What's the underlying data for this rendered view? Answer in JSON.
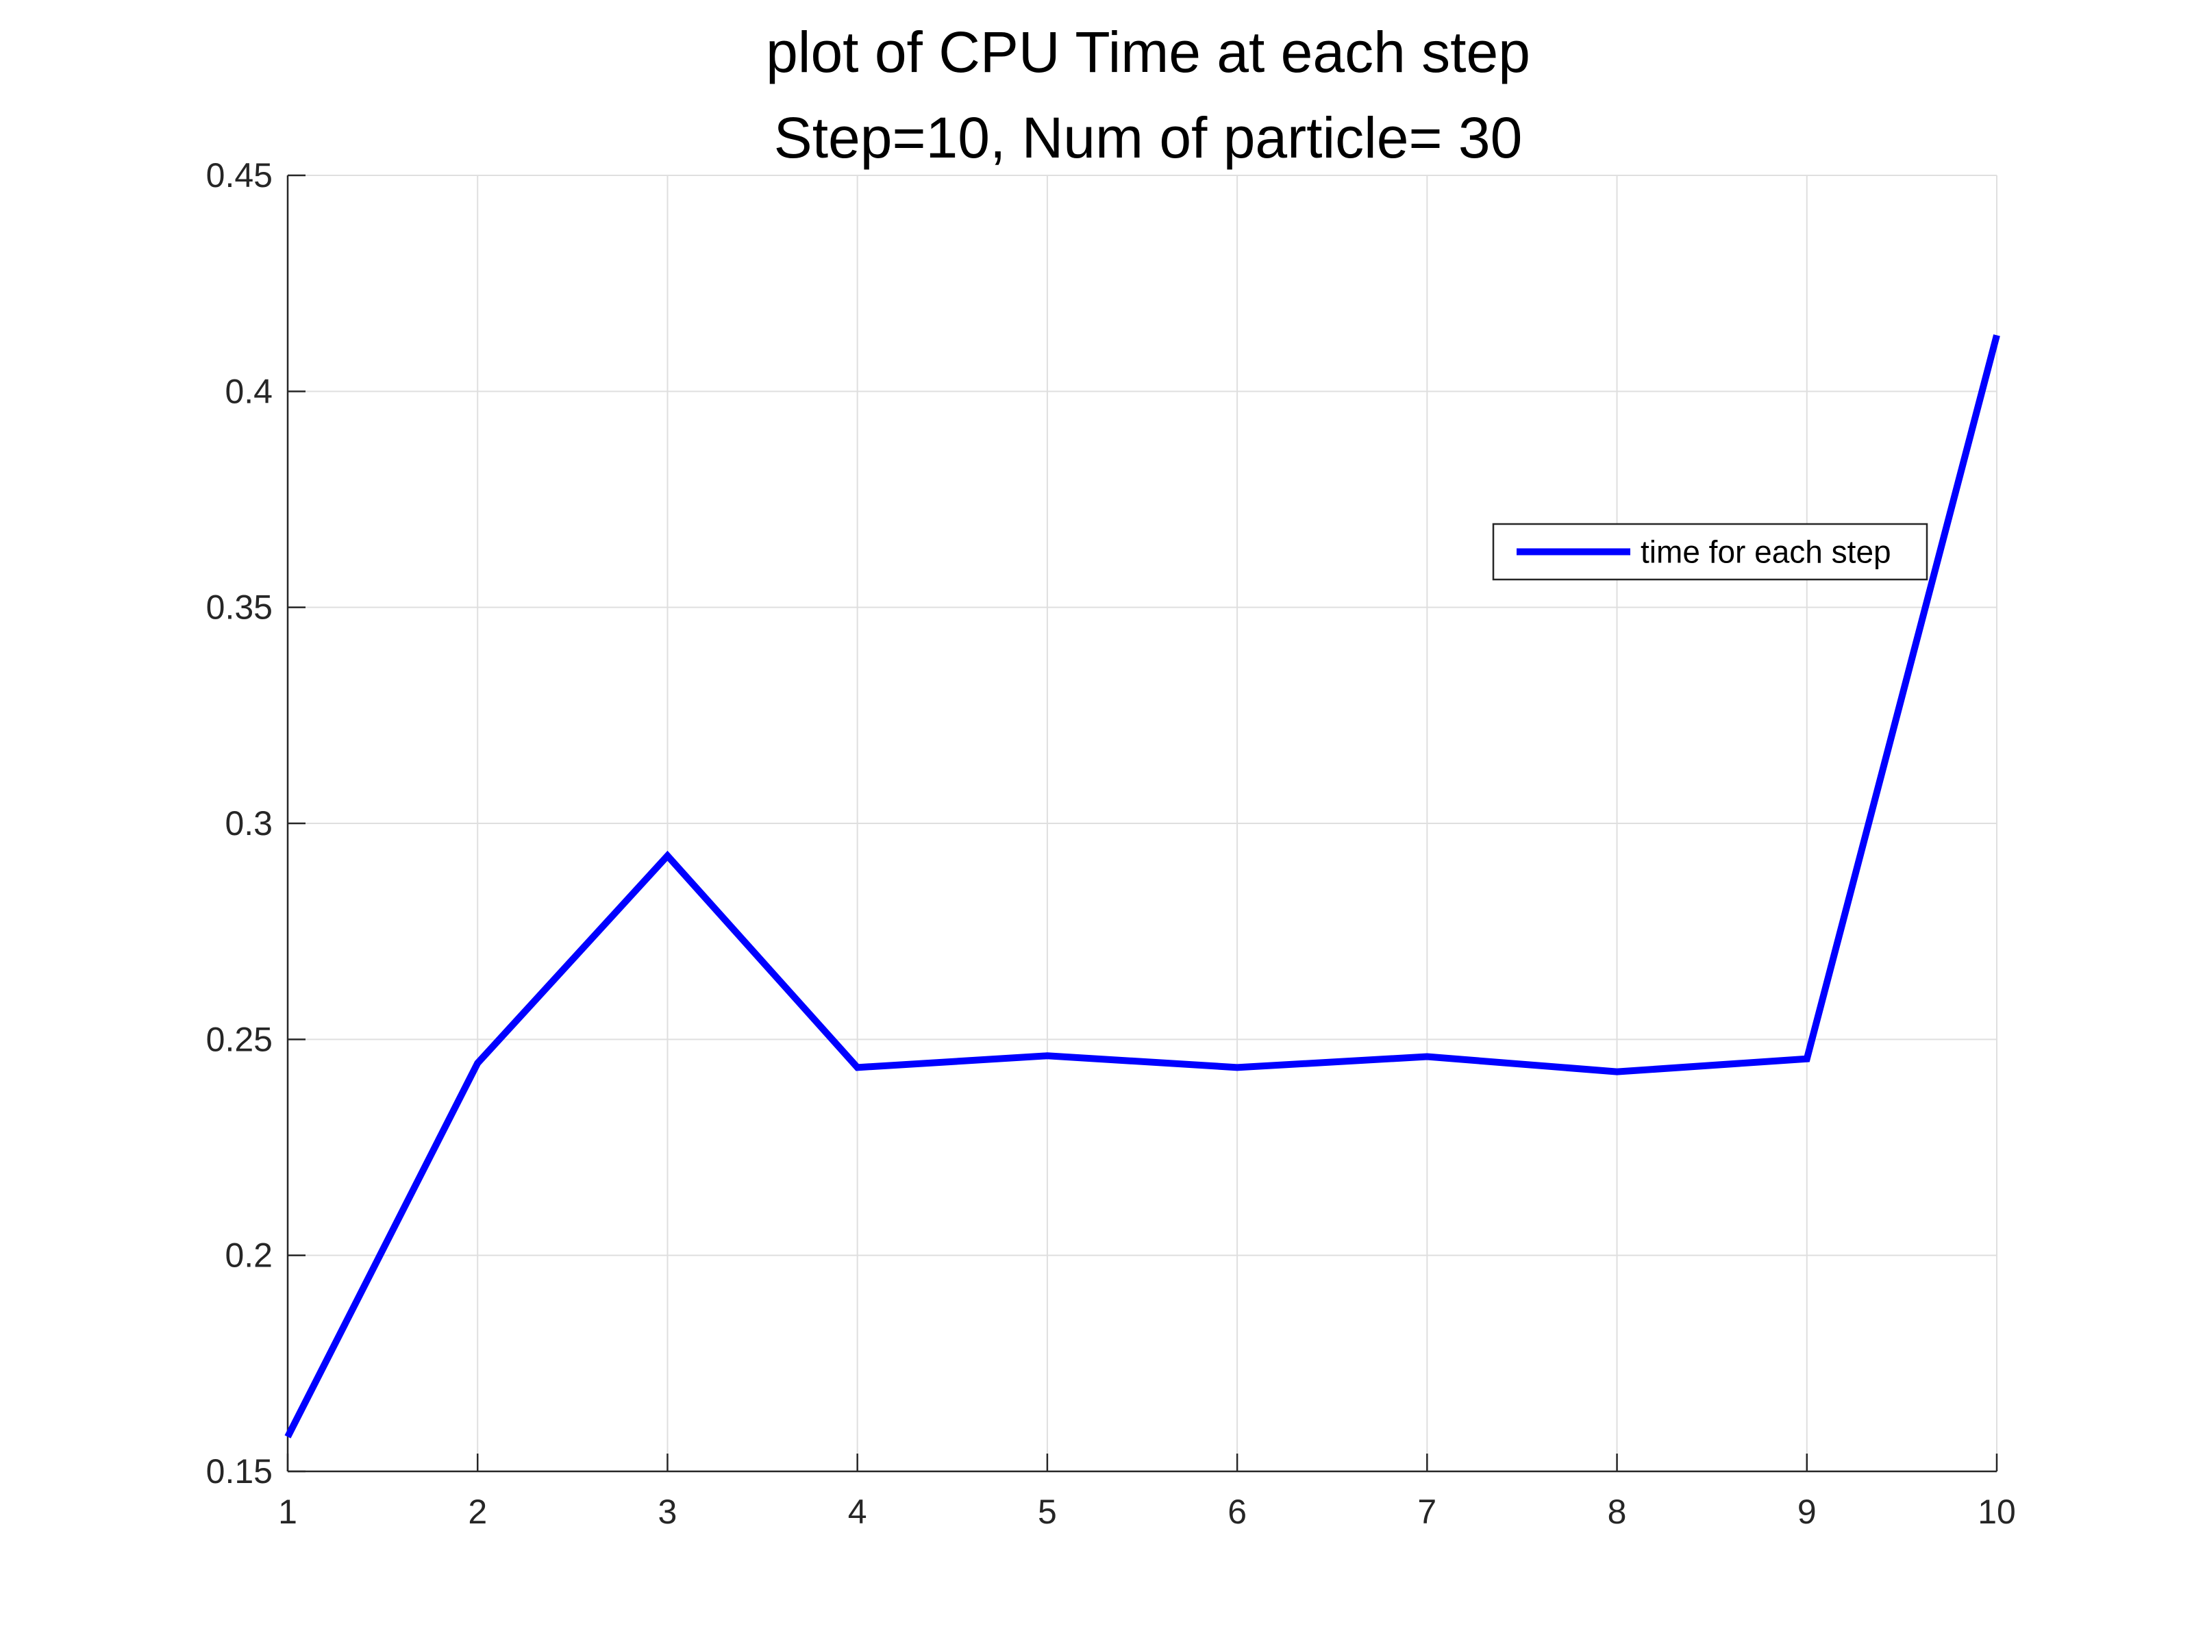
{
  "chart_data": {
    "type": "line",
    "title": "plot of CPU Time at each step",
    "subtitle": "Step=10, Num of particle= 30",
    "xlabel": "",
    "ylabel": "",
    "x": [
      1,
      2,
      3,
      4,
      5,
      6,
      7,
      8,
      9,
      10
    ],
    "series": [
      {
        "name": "time for each step",
        "values": [
          0.158,
          0.2445,
          0.2925,
          0.2435,
          0.2462,
          0.2435,
          0.246,
          0.2425,
          0.2455,
          0.413
        ],
        "color": "#0000ff"
      }
    ],
    "xlim": [
      1,
      10
    ],
    "ylim": [
      0.15,
      0.45
    ],
    "x_ticks": [
      "1",
      "2",
      "3",
      "4",
      "5",
      "6",
      "7",
      "8",
      "9",
      "10"
    ],
    "y_ticks": [
      "0.15",
      "0.2",
      "0.25",
      "0.3",
      "0.35",
      "0.4",
      "0.45"
    ],
    "grid": true,
    "legend_position": "upper-right"
  }
}
